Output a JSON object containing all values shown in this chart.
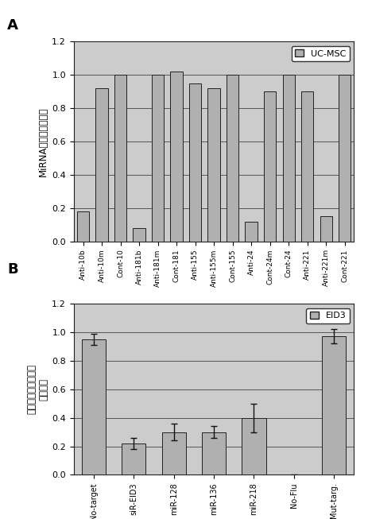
{
  "panel_A": {
    "categories": [
      "Anti-10b",
      "Anti-10m",
      "Cont-10",
      "Anti-181b",
      "Anti-181m",
      "Cont-181",
      "Anti-155",
      "Anti-155m",
      "Cont-155",
      "Anti-24",
      "Cont-24m",
      "Cont-24",
      "Anti-221",
      "Anti-221m",
      "Cont-221"
    ],
    "values": [
      0.18,
      0.92,
      1.0,
      0.08,
      1.0,
      1.02,
      0.95,
      0.92,
      1.0,
      0.12,
      0.9,
      1.0,
      0.9,
      0.15,
      1.0
    ],
    "ylim": [
      0,
      1.2
    ],
    "yticks": [
      0,
      0.2,
      0.4,
      0.6,
      0.8,
      1.0,
      1.2
    ],
    "ylabel": "MiRNA的相对表达水平",
    "legend_label": "UC-MSC",
    "panel_label": "A",
    "bar_color": "#b0b0b0",
    "bar_edge_color": "#222222",
    "bg_color": "#cccccc",
    "grid_color": "#444444"
  },
  "panel_B": {
    "categories": [
      "No-target",
      "siR-EID3",
      "miR-128",
      "miR-136",
      "miR-218",
      "No-Flu",
      "Mut-targ."
    ],
    "values": [
      0.95,
      0.22,
      0.3,
      0.3,
      0.4,
      0.0,
      0.97
    ],
    "errors": [
      0.04,
      0.04,
      0.06,
      0.04,
      0.1,
      0.005,
      0.05
    ],
    "ylim": [
      0,
      1.2
    ],
    "yticks": [
      0,
      0.2,
      0.4,
      0.6,
      0.8,
      1.0,
      1.2
    ],
    "ylabel_line1": "荚光素酶基因的相对",
    "ylabel_line2": "表达水平",
    "legend_label": "EID3",
    "panel_label": "B",
    "bar_color": "#b0b0b0",
    "bar_edge_color": "#222222",
    "bg_color": "#cccccc",
    "grid_color": "#444444"
  },
  "figure_bg": "#ffffff"
}
